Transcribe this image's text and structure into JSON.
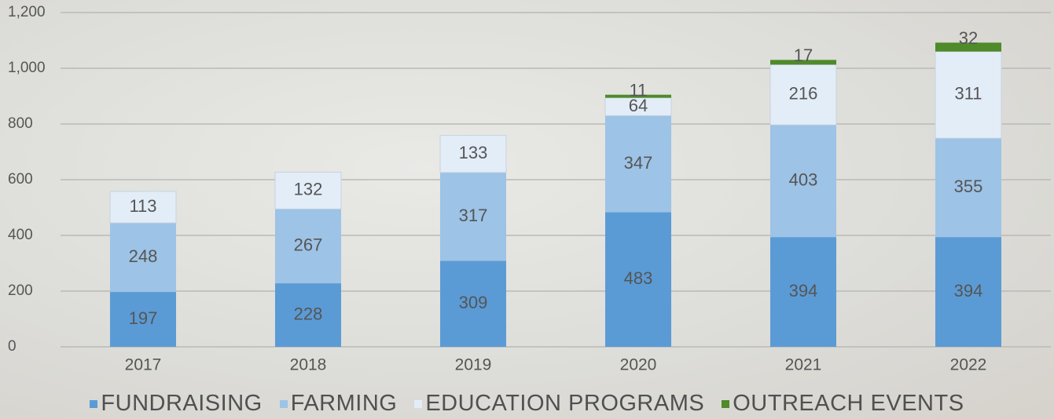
{
  "chart_data": {
    "type": "stacked-bar",
    "categories": [
      "2017",
      "2018",
      "2019",
      "2020",
      "2021",
      "2022"
    ],
    "series": [
      {
        "name": "FUNDRAISING",
        "color": "#5b9bd5",
        "values": [
          197,
          228,
          309,
          483,
          394,
          394
        ]
      },
      {
        "name": "FARMING",
        "color": "#9dc3e6",
        "values": [
          248,
          267,
          317,
          347,
          403,
          355
        ]
      },
      {
        "name": "EDUCATION PROGRAMS",
        "color": "#e3edf8",
        "values": [
          113,
          132,
          133,
          64,
          216,
          311
        ]
      },
      {
        "name": "OUTREACH EVENTS",
        "color": "#4f8a2b",
        "values": [
          null,
          null,
          null,
          11,
          17,
          32
        ]
      }
    ],
    "ylim": [
      0,
      1200
    ],
    "yticks": [
      0,
      200,
      400,
      600,
      800,
      {
        "value": 1000,
        "label": "1,000"
      },
      {
        "value": 1200,
        "label": "1,200"
      }
    ],
    "grid": true,
    "legend": "bottom"
  }
}
